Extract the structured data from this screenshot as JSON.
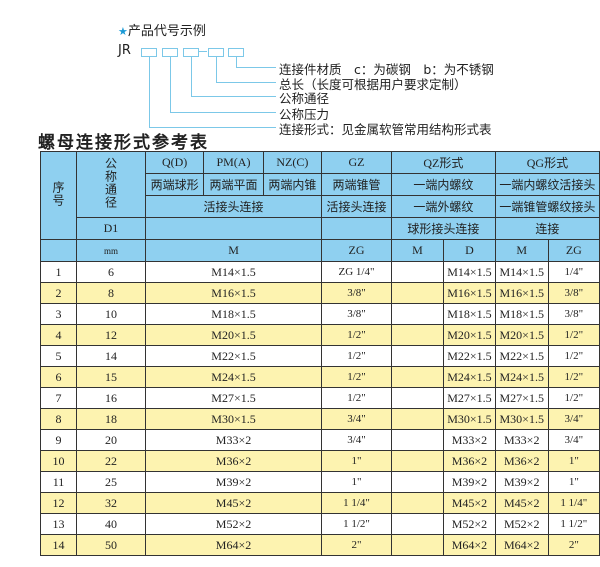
{
  "diagram": {
    "title": "产品代号示例",
    "star_icon": "star-icon",
    "prefix": "JR",
    "labels": [
      "连接件材质　c：为碳钢　b：为不锈钢",
      "总长（长度可根据用户要求定制）",
      "公称通径",
      "公称压力",
      "连接形式：见金属软管常用结构形式表"
    ],
    "line_color": "#7cc8e8"
  },
  "table_title": "螺母连接形式参考表",
  "table": {
    "header": {
      "seq": "序号",
      "dn": "公称通径",
      "d1": "D1",
      "mm": "mm",
      "q": "Q(D)",
      "pm": "PM(A)",
      "nz": "NZ(C)",
      "gz": "GZ",
      "qz": "QZ形式",
      "qg": "QG形式",
      "q2": "两端球形",
      "pm2": "两端平面",
      "nz2": "两端内锥",
      "gz2": "两端锥管",
      "qz2": "一端内螺纹",
      "qg2": "一端内螺纹活接头",
      "live": "活接头连接",
      "gz3": "活接头连接",
      "qz3": "一端外螺纹",
      "qg3": "一端锥管螺纹接头",
      "qz4": "球形接头连接",
      "qg4": "连接",
      "m": "M",
      "zg": "ZG",
      "qzm": "M",
      "qzd": "D",
      "qgm": "M",
      "qgzg": "ZG"
    },
    "header_color": "#8fd0f0",
    "stripe_color": "#fdf3b0",
    "rows": [
      [
        "1",
        "6",
        "M14×1.5",
        "ZG 1/4\"",
        "",
        "M14×1.5",
        "M14×1.5",
        "1/4\""
      ],
      [
        "2",
        "8",
        "M16×1.5",
        "3/8\"",
        "",
        "M16×1.5",
        "M16×1.5",
        "3/8\""
      ],
      [
        "3",
        "10",
        "M18×1.5",
        "3/8\"",
        "",
        "M18×1.5",
        "M18×1.5",
        "3/8\""
      ],
      [
        "4",
        "12",
        "M20×1.5",
        "1/2\"",
        "",
        "M20×1.5",
        "M20×1.5",
        "1/2\""
      ],
      [
        "5",
        "14",
        "M22×1.5",
        "1/2\"",
        "",
        "M22×1.5",
        "M22×1.5",
        "1/2\""
      ],
      [
        "6",
        "15",
        "M24×1.5",
        "1/2\"",
        "",
        "M24×1.5",
        "M24×1.5",
        "1/2\""
      ],
      [
        "7",
        "16",
        "M27×1.5",
        "1/2\"",
        "",
        "M27×1.5",
        "M27×1.5",
        "1/2\""
      ],
      [
        "8",
        "18",
        "M30×1.5",
        "3/4\"",
        "",
        "M30×1.5",
        "M30×1.5",
        "3/4\""
      ],
      [
        "9",
        "20",
        "M33×2",
        "3/4\"",
        "",
        "M33×2",
        "M33×2",
        "3/4\""
      ],
      [
        "10",
        "22",
        "M36×2",
        "1\"",
        "",
        "M36×2",
        "M36×2",
        "1\""
      ],
      [
        "11",
        "25",
        "M39×2",
        "1\"",
        "",
        "M39×2",
        "M39×2",
        "1\""
      ],
      [
        "12",
        "32",
        "M45×2",
        "1 1/4\"",
        "",
        "M45×2",
        "M45×2",
        "1 1/4\""
      ],
      [
        "13",
        "40",
        "M52×2",
        "1 1/2\"",
        "",
        "M52×2",
        "M52×2",
        "1 1/2\""
      ],
      [
        "14",
        "50",
        "M64×2",
        "2\"",
        "",
        "M64×2",
        "M64×2",
        "2\""
      ]
    ]
  }
}
